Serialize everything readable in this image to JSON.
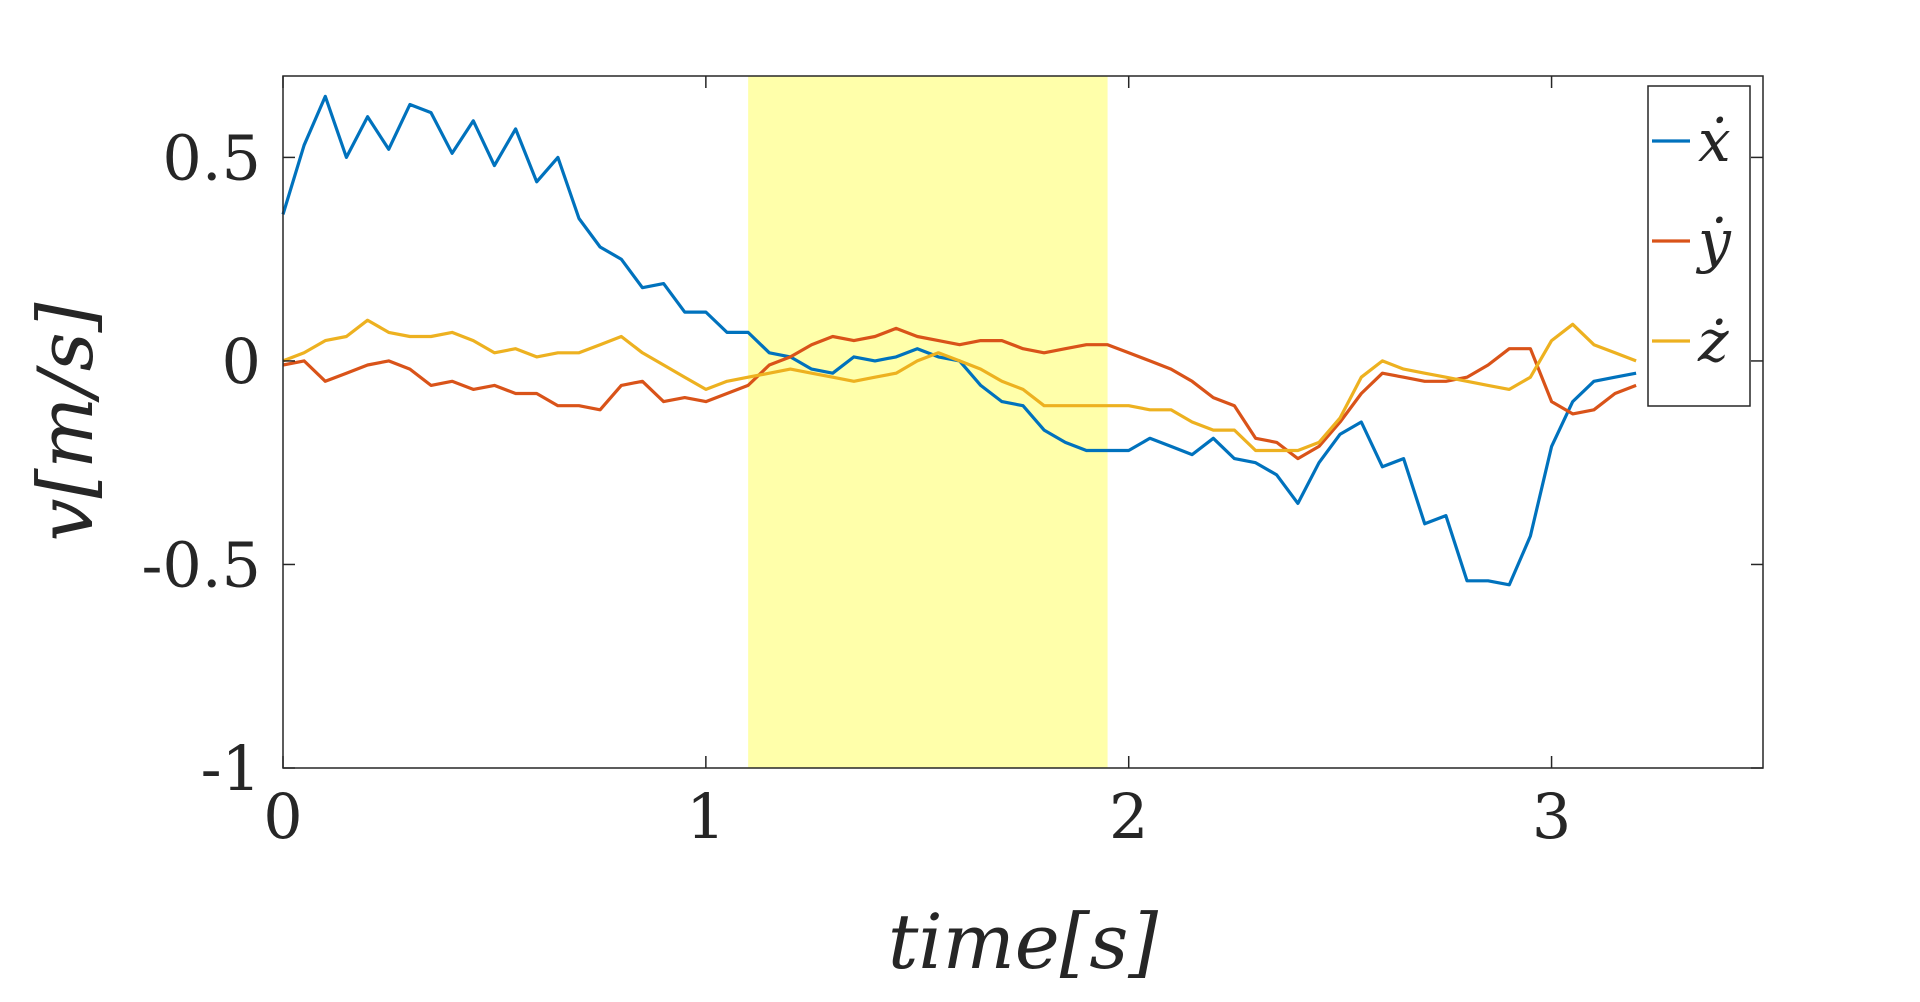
{
  "chart_data": {
    "type": "line",
    "title": "",
    "xlabel": "time[s]",
    "ylabel": "v[m/s]",
    "xlim": [
      0,
      3.5
    ],
    "ylim": [
      -1,
      0.7
    ],
    "xticks": [
      0,
      1,
      2,
      3
    ],
    "xtick_labels": [
      "0",
      "1",
      "2",
      "3"
    ],
    "yticks": [
      -1,
      -0.5,
      0,
      0.5
    ],
    "ytick_labels": [
      "-1",
      "-0.5",
      "0",
      "0.5"
    ],
    "grid": false,
    "legend_position": "top-right",
    "highlight_region": {
      "x": [
        1.1,
        1.95
      ],
      "color": "#FFFFAA"
    },
    "series": [
      {
        "name": "ẋ",
        "color": "#0072BD",
        "x": [
          0.0,
          0.05,
          0.1,
          0.15,
          0.2,
          0.25,
          0.3,
          0.35,
          0.4,
          0.45,
          0.5,
          0.55,
          0.6,
          0.65,
          0.7,
          0.75,
          0.8,
          0.85,
          0.9,
          0.95,
          1.0,
          1.05,
          1.1,
          1.15,
          1.2,
          1.25,
          1.3,
          1.35,
          1.4,
          1.45,
          1.5,
          1.55,
          1.6,
          1.65,
          1.7,
          1.75,
          1.8,
          1.85,
          1.9,
          1.95,
          2.0,
          2.05,
          2.1,
          2.15,
          2.2,
          2.25,
          2.3,
          2.35,
          2.4,
          2.45,
          2.5,
          2.55,
          2.6,
          2.65,
          2.7,
          2.75,
          2.8,
          2.85,
          2.9,
          2.95,
          3.0,
          3.05,
          3.1,
          3.15,
          3.2
        ],
        "y": [
          0.36,
          0.53,
          0.65,
          0.5,
          0.6,
          0.52,
          0.63,
          0.61,
          0.51,
          0.59,
          0.48,
          0.57,
          0.44,
          0.5,
          0.35,
          0.28,
          0.25,
          0.18,
          0.19,
          0.12,
          0.12,
          0.07,
          0.07,
          0.02,
          0.01,
          -0.02,
          -0.03,
          0.01,
          0.0,
          0.01,
          0.03,
          0.01,
          0.0,
          -0.06,
          -0.1,
          -0.11,
          -0.17,
          -0.2,
          -0.22,
          -0.22,
          -0.22,
          -0.19,
          -0.21,
          -0.23,
          -0.19,
          -0.24,
          -0.25,
          -0.28,
          -0.35,
          -0.25,
          -0.18,
          -0.15,
          -0.26,
          -0.24,
          -0.4,
          -0.38,
          -0.54,
          -0.54,
          -0.55,
          -0.43,
          -0.21,
          -0.1,
          -0.05,
          -0.04,
          -0.03
        ]
      },
      {
        "name": "ẏ",
        "color": "#D95319",
        "x": [
          0.0,
          0.05,
          0.1,
          0.15,
          0.2,
          0.25,
          0.3,
          0.35,
          0.4,
          0.45,
          0.5,
          0.55,
          0.6,
          0.65,
          0.7,
          0.75,
          0.8,
          0.85,
          0.9,
          0.95,
          1.0,
          1.05,
          1.1,
          1.15,
          1.2,
          1.25,
          1.3,
          1.35,
          1.4,
          1.45,
          1.5,
          1.55,
          1.6,
          1.65,
          1.7,
          1.75,
          1.8,
          1.85,
          1.9,
          1.95,
          2.0,
          2.05,
          2.1,
          2.15,
          2.2,
          2.25,
          2.3,
          2.35,
          2.4,
          2.45,
          2.5,
          2.55,
          2.6,
          2.65,
          2.7,
          2.75,
          2.8,
          2.85,
          2.9,
          2.95,
          3.0,
          3.05,
          3.1,
          3.15,
          3.2
        ],
        "y": [
          -0.01,
          0.0,
          -0.05,
          -0.03,
          -0.01,
          0.0,
          -0.02,
          -0.06,
          -0.05,
          -0.07,
          -0.06,
          -0.08,
          -0.08,
          -0.11,
          -0.11,
          -0.12,
          -0.06,
          -0.05,
          -0.1,
          -0.09,
          -0.1,
          -0.08,
          -0.06,
          -0.01,
          0.01,
          0.04,
          0.06,
          0.05,
          0.06,
          0.08,
          0.06,
          0.05,
          0.04,
          0.05,
          0.05,
          0.03,
          0.02,
          0.03,
          0.04,
          0.04,
          0.02,
          0.0,
          -0.02,
          -0.05,
          -0.09,
          -0.11,
          -0.19,
          -0.2,
          -0.24,
          -0.21,
          -0.15,
          -0.08,
          -0.03,
          -0.04,
          -0.05,
          -0.05,
          -0.04,
          -0.01,
          0.03,
          0.03,
          -0.1,
          -0.13,
          -0.12,
          -0.08,
          -0.06
        ]
      },
      {
        "name": "ż",
        "color": "#EDB120",
        "x": [
          0.0,
          0.05,
          0.1,
          0.15,
          0.2,
          0.25,
          0.3,
          0.35,
          0.4,
          0.45,
          0.5,
          0.55,
          0.6,
          0.65,
          0.7,
          0.75,
          0.8,
          0.85,
          0.9,
          0.95,
          1.0,
          1.05,
          1.1,
          1.15,
          1.2,
          1.25,
          1.3,
          1.35,
          1.4,
          1.45,
          1.5,
          1.55,
          1.6,
          1.65,
          1.7,
          1.75,
          1.8,
          1.85,
          1.9,
          1.95,
          2.0,
          2.05,
          2.1,
          2.15,
          2.2,
          2.25,
          2.3,
          2.35,
          2.4,
          2.45,
          2.5,
          2.55,
          2.6,
          2.65,
          2.7,
          2.75,
          2.8,
          2.85,
          2.9,
          2.95,
          3.0,
          3.05,
          3.1,
          3.15,
          3.2
        ],
        "y": [
          0.0,
          0.02,
          0.05,
          0.06,
          0.1,
          0.07,
          0.06,
          0.06,
          0.07,
          0.05,
          0.02,
          0.03,
          0.01,
          0.02,
          0.02,
          0.04,
          0.06,
          0.02,
          -0.01,
          -0.04,
          -0.07,
          -0.05,
          -0.04,
          -0.03,
          -0.02,
          -0.03,
          -0.04,
          -0.05,
          -0.04,
          -0.03,
          0.0,
          0.02,
          0.0,
          -0.02,
          -0.05,
          -0.07,
          -0.11,
          -0.11,
          -0.11,
          -0.11,
          -0.11,
          -0.12,
          -0.12,
          -0.15,
          -0.17,
          -0.17,
          -0.22,
          -0.22,
          -0.22,
          -0.2,
          -0.14,
          -0.04,
          0.0,
          -0.02,
          -0.03,
          -0.04,
          -0.05,
          -0.06,
          -0.07,
          -0.04,
          0.05,
          0.09,
          0.04,
          0.02,
          0.0
        ]
      }
    ]
  }
}
